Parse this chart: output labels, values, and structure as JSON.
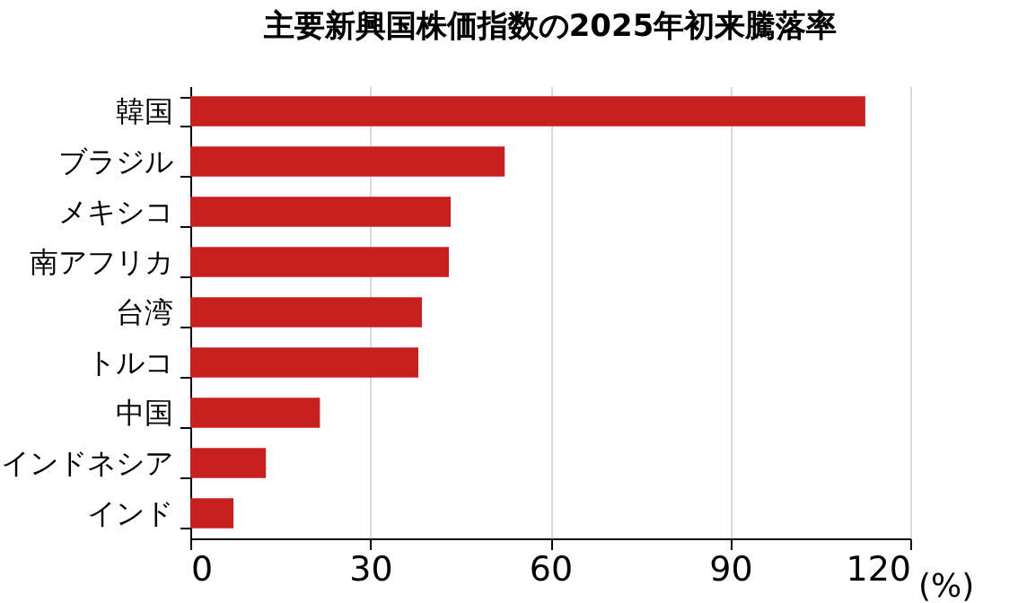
{
  "chart_data": {
    "type": "bar",
    "orientation": "horizontal",
    "title": "主要新興国株価指数の2025年初来騰落率",
    "xlabel": "(%)",
    "categories": [
      "韓国",
      "ブラジル",
      "メキシコ",
      "南アフリカ",
      "台湾",
      "トルコ",
      "中国",
      "インドネシア",
      "インド"
    ],
    "values": [
      112.5,
      52.4,
      43.4,
      43.1,
      38.6,
      38.0,
      21.6,
      12.6,
      7.2
    ],
    "color": "#c8201f",
    "xlim": [
      0,
      120
    ],
    "xticks": [
      0,
      30,
      60,
      90,
      120
    ],
    "grid": "x"
  }
}
